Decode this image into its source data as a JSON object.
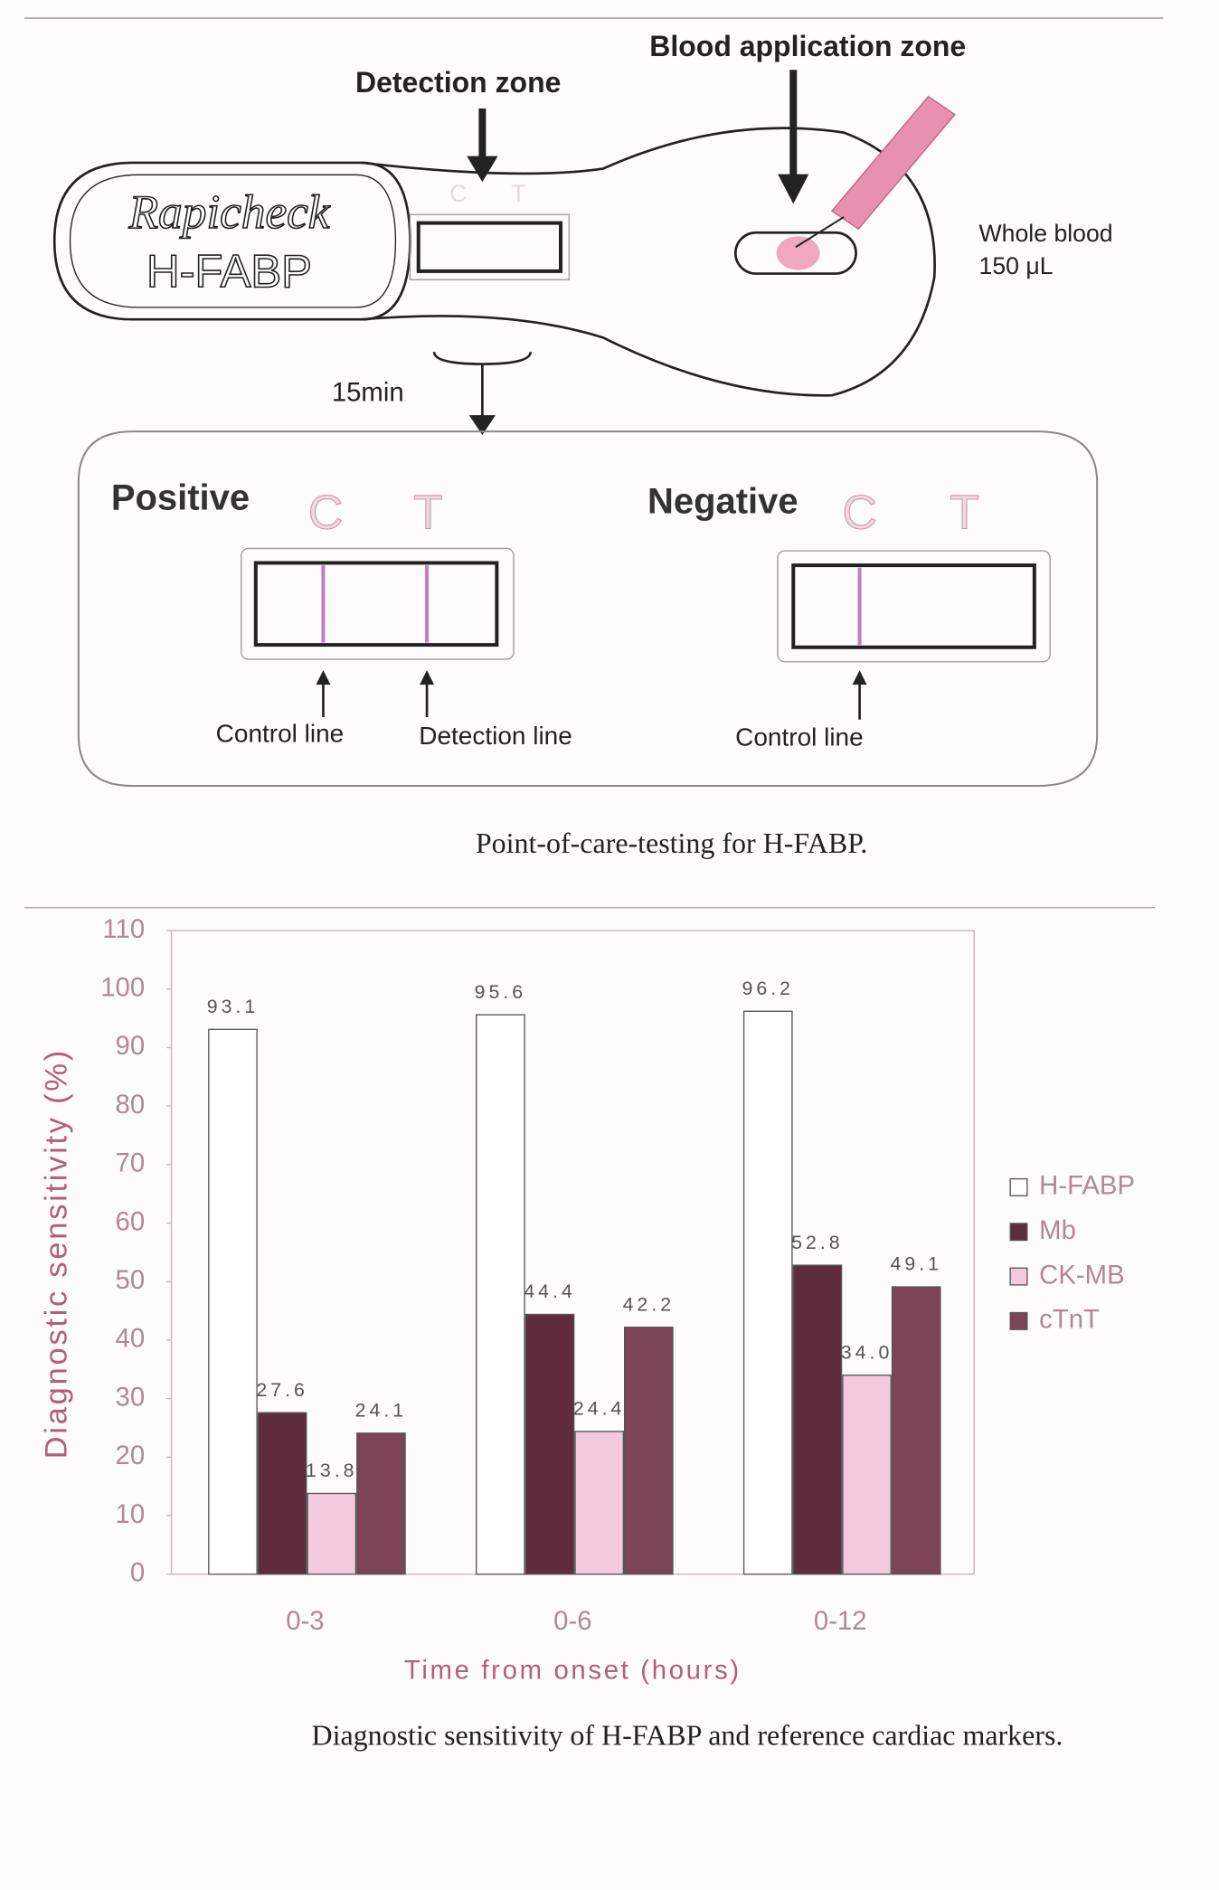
{
  "diagram": {
    "blood_application_zone": "Blood application zone",
    "detection_zone": "Detection zone",
    "logo_line1": "Rapicheck",
    "logo_line2": "H-FABP",
    "strip_c": "C",
    "strip_t": "T",
    "whole_blood": "Whole blood",
    "volume": "150 μL",
    "time": "15min",
    "positive": "Positive",
    "negative": "Negative",
    "c": "C",
    "t": "T",
    "control_line": "Control line",
    "detection_line": "Detection line"
  },
  "captions": [
    "Point-of-care-testing for H-FABP.",
    "Diagnostic sensitivity of H-FABP and reference cardiac markers."
  ],
  "chart_data": {
    "type": "bar",
    "x_label": "Time from onset (hours)",
    "y_label": "Diagnostic sensitivity (%)",
    "categories": [
      "0-3",
      "0-6",
      "0-12"
    ],
    "series": [
      {
        "name": "H-FABP",
        "color": "#ffffff",
        "values": [
          93.1,
          95.6,
          96.2
        ]
      },
      {
        "name": "Mb",
        "color": "#5e2c3c",
        "values": [
          27.6,
          44.4,
          52.8
        ]
      },
      {
        "name": "CK-MB",
        "color": "#f2cadb",
        "values": [
          13.8,
          24.4,
          34.0
        ],
        "value_labels": [
          "13.8",
          "24.4",
          "34.0"
        ]
      },
      {
        "name": "cTnT",
        "color": "#7d4356",
        "values": [
          24.1,
          42.2,
          49.1
        ]
      }
    ],
    "ylim": [
      0,
      110
    ],
    "yticks": [
      0,
      10,
      20,
      30,
      40,
      50,
      60,
      70,
      80,
      90,
      100,
      110
    ],
    "legend": "right"
  }
}
